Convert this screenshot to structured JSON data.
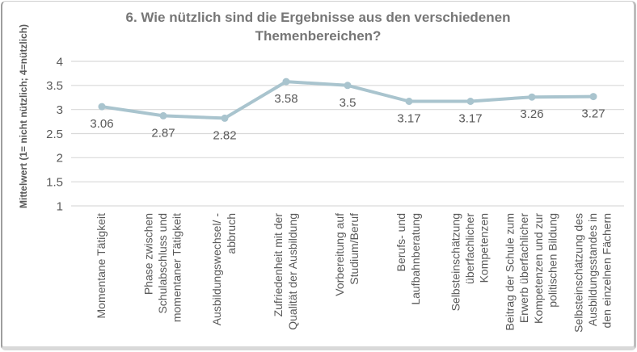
{
  "chart_data": {
    "type": "line",
    "title": "6. Wie nützlich sind die Ergebnisse aus den verschiedenen Themenbereichen?",
    "ylabel": "Mittelwert (1= nicht nützlich; 4=nützlich)",
    "xlabel": "",
    "categories": [
      "Momentane Tätigkeit",
      "Phase zwischen Schulabschluss und momentaner Tätigkeit",
      "Ausbildungswechsel/ -abbruch",
      "Zufriedenheit mit der Qualität der Ausbildung",
      "Vorbereitung auf Studium/Beruf",
      "Berufs- und Laufbahnberatung",
      "Selbsteinschätzung überfachlicher Kompetenzen",
      "Beitrag der Schule zum Erwerb überfachlicher Kompetenzen und zur politischen Bildung",
      "Selbsteinschätzung des Ausbildungsstandes in den einzelnen Fächern"
    ],
    "category_lines": [
      [
        "Momentane Tätigkeit"
      ],
      [
        "Phase zwischen",
        "Schulabschluss und",
        "momentaner Tätigkeit"
      ],
      [
        "Ausbildungswechsel/ -",
        "abbruch"
      ],
      [
        "Zufriedenheit mit der",
        "Qualität der Ausbildung"
      ],
      [
        "Vorbereitung auf",
        "Studium/Beruf"
      ],
      [
        "Berufs- und",
        "Laufbahnberatung"
      ],
      [
        "Selbsteinschätzung",
        "überfachlicher",
        "Kompetenzen"
      ],
      [
        "Beitrag der Schule zum",
        "Erwerb überfachlicher",
        "Kompetenzen und zur",
        "politischen Bildung"
      ],
      [
        "Selbsteinschätzung des",
        "Ausbildungsstandes in",
        "den einzelnen Fächern"
      ]
    ],
    "values": [
      3.06,
      2.87,
      2.82,
      3.58,
      3.5,
      3.17,
      3.17,
      3.26,
      3.27
    ],
    "data_labels": [
      "3.06",
      "2.87",
      "2.82",
      "3.58",
      "3.5",
      "3.17",
      "3.17",
      "3.26",
      "3.27"
    ],
    "ylim": [
      1,
      4
    ],
    "ytick_labels": [
      "4",
      "3.5",
      "3",
      "2.5",
      "2",
      "1.5",
      "1"
    ],
    "grid": true,
    "legend": "none",
    "colors": {
      "line": "#a9c4ce",
      "marker": "#a9c4ce",
      "grid": "#d9d9d9",
      "text": "#595959",
      "title": "#767676",
      "background": "#ffffff",
      "frame_border": "#9e9e9e"
    }
  }
}
